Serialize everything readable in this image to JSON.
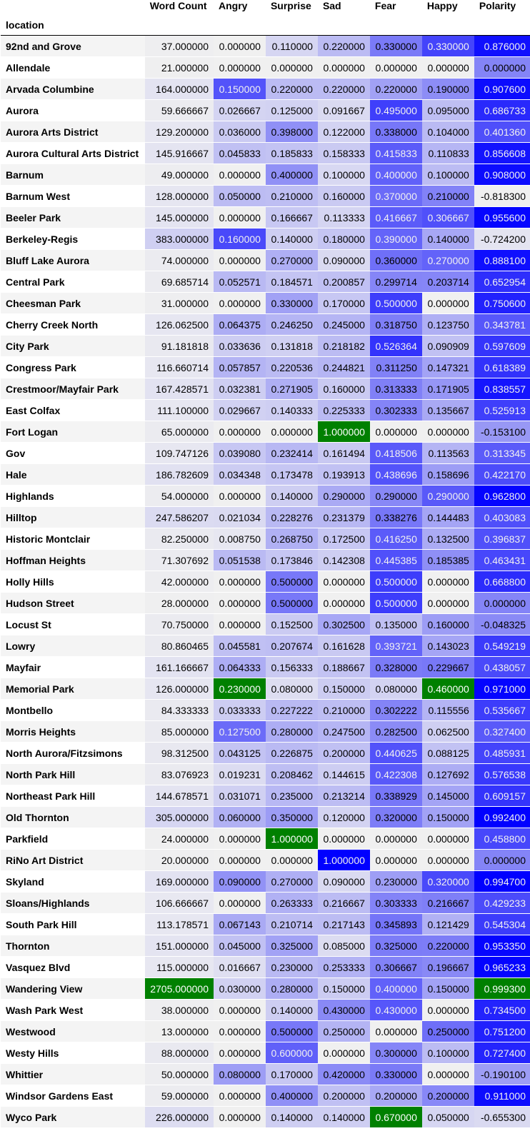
{
  "table": {
    "index_label": "location",
    "columns": [
      "Word Count",
      "Angry",
      "Surprise",
      "Sad",
      "Fear",
      "Happy",
      "Polarity"
    ],
    "highlight_color": "#008000",
    "rows": [
      {
        "location": "92nd and Grove",
        "values": [
          "37.000000",
          "0.000000",
          "0.110000",
          "0.220000",
          "0.330000",
          "0.330000",
          "0.876000"
        ]
      },
      {
        "location": "Allendale",
        "values": [
          "21.000000",
          "0.000000",
          "0.000000",
          "0.000000",
          "0.000000",
          "0.000000",
          "0.000000"
        ]
      },
      {
        "location": "Arvada Columbine",
        "values": [
          "164.000000",
          "0.150000",
          "0.220000",
          "0.220000",
          "0.220000",
          "0.190000",
          "0.907600"
        ]
      },
      {
        "location": "Aurora",
        "values": [
          "59.666667",
          "0.026667",
          "0.125000",
          "0.091667",
          "0.495000",
          "0.095000",
          "0.686733"
        ]
      },
      {
        "location": "Aurora Arts District",
        "values": [
          "129.200000",
          "0.036000",
          "0.398000",
          "0.122000",
          "0.338000",
          "0.104000",
          "0.401360"
        ]
      },
      {
        "location": "Aurora Cultural Arts District",
        "values": [
          "145.916667",
          "0.045833",
          "0.185833",
          "0.158333",
          "0.415833",
          "0.110833",
          "0.856608"
        ]
      },
      {
        "location": "Barnum",
        "values": [
          "49.000000",
          "0.000000",
          "0.400000",
          "0.100000",
          "0.400000",
          "0.100000",
          "0.908000"
        ]
      },
      {
        "location": "Barnum West",
        "values": [
          "128.000000",
          "0.050000",
          "0.210000",
          "0.160000",
          "0.370000",
          "0.210000",
          "-0.818300"
        ]
      },
      {
        "location": "Beeler Park",
        "values": [
          "145.000000",
          "0.000000",
          "0.166667",
          "0.113333",
          "0.416667",
          "0.306667",
          "0.955600"
        ]
      },
      {
        "location": "Berkeley-Regis",
        "values": [
          "383.000000",
          "0.160000",
          "0.140000",
          "0.180000",
          "0.390000",
          "0.140000",
          "-0.724200"
        ]
      },
      {
        "location": "Bluff Lake Aurora",
        "values": [
          "74.000000",
          "0.000000",
          "0.270000",
          "0.090000",
          "0.360000",
          "0.270000",
          "0.888100"
        ]
      },
      {
        "location": "Central Park",
        "values": [
          "69.685714",
          "0.052571",
          "0.184571",
          "0.200857",
          "0.299714",
          "0.203714",
          "0.652954"
        ]
      },
      {
        "location": "Cheesman Park",
        "values": [
          "31.000000",
          "0.000000",
          "0.330000",
          "0.170000",
          "0.500000",
          "0.000000",
          "0.750600"
        ]
      },
      {
        "location": "Cherry Creek North",
        "values": [
          "126.062500",
          "0.064375",
          "0.246250",
          "0.245000",
          "0.318750",
          "0.123750",
          "0.343781"
        ]
      },
      {
        "location": "City Park",
        "values": [
          "91.181818",
          "0.033636",
          "0.131818",
          "0.218182",
          "0.526364",
          "0.090909",
          "0.597609"
        ]
      },
      {
        "location": "Congress Park",
        "values": [
          "116.660714",
          "0.057857",
          "0.220536",
          "0.244821",
          "0.311250",
          "0.147321",
          "0.618389"
        ]
      },
      {
        "location": "Crestmoor/Mayfair Park",
        "values": [
          "167.428571",
          "0.032381",
          "0.271905",
          "0.160000",
          "0.313333",
          "0.171905",
          "0.838557"
        ]
      },
      {
        "location": "East Colfax",
        "values": [
          "111.100000",
          "0.029667",
          "0.140333",
          "0.225333",
          "0.302333",
          "0.135667",
          "0.525913"
        ]
      },
      {
        "location": "Fort Logan",
        "values": [
          "65.000000",
          "0.000000",
          "0.000000",
          "1.000000",
          "0.000000",
          "0.000000",
          "-0.153100"
        ]
      },
      {
        "location": "Gov",
        "values": [
          "109.747126",
          "0.039080",
          "0.232414",
          "0.161494",
          "0.418506",
          "0.113563",
          "0.313345"
        ]
      },
      {
        "location": "Hale",
        "values": [
          "186.782609",
          "0.034348",
          "0.173478",
          "0.193913",
          "0.438696",
          "0.158696",
          "0.422170"
        ]
      },
      {
        "location": "Highlands",
        "values": [
          "54.000000",
          "0.000000",
          "0.140000",
          "0.290000",
          "0.290000",
          "0.290000",
          "0.962800"
        ]
      },
      {
        "location": "Hilltop",
        "values": [
          "247.586207",
          "0.021034",
          "0.228276",
          "0.231379",
          "0.338276",
          "0.144483",
          "0.403083"
        ]
      },
      {
        "location": "Historic Montclair",
        "values": [
          "82.250000",
          "0.008750",
          "0.268750",
          "0.172500",
          "0.416250",
          "0.132500",
          "0.396837"
        ]
      },
      {
        "location": "Hoffman Heights",
        "values": [
          "71.307692",
          "0.051538",
          "0.173846",
          "0.142308",
          "0.445385",
          "0.185385",
          "0.463431"
        ]
      },
      {
        "location": "Holly Hills",
        "values": [
          "42.000000",
          "0.000000",
          "0.500000",
          "0.000000",
          "0.500000",
          "0.000000",
          "0.668800"
        ]
      },
      {
        "location": "Hudson Street",
        "values": [
          "28.000000",
          "0.000000",
          "0.500000",
          "0.000000",
          "0.500000",
          "0.000000",
          "0.000000"
        ]
      },
      {
        "location": "Locust St",
        "values": [
          "70.750000",
          "0.000000",
          "0.152500",
          "0.302500",
          "0.135000",
          "0.160000",
          "-0.048325"
        ]
      },
      {
        "location": "Lowry",
        "values": [
          "80.860465",
          "0.045581",
          "0.207674",
          "0.161628",
          "0.393721",
          "0.143023",
          "0.549219"
        ]
      },
      {
        "location": "Mayfair",
        "values": [
          "161.166667",
          "0.064333",
          "0.156333",
          "0.188667",
          "0.328000",
          "0.229667",
          "0.438057"
        ]
      },
      {
        "location": "Memorial Park",
        "values": [
          "126.000000",
          "0.230000",
          "0.080000",
          "0.150000",
          "0.080000",
          "0.460000",
          "0.971000"
        ]
      },
      {
        "location": "Montbello",
        "values": [
          "84.333333",
          "0.033333",
          "0.227222",
          "0.210000",
          "0.302222",
          "0.115556",
          "0.535667"
        ]
      },
      {
        "location": "Morris Heights",
        "values": [
          "85.000000",
          "0.127500",
          "0.280000",
          "0.247500",
          "0.282500",
          "0.062500",
          "0.327400"
        ]
      },
      {
        "location": "North Aurora/Fitzsimons",
        "values": [
          "98.312500",
          "0.043125",
          "0.226875",
          "0.200000",
          "0.440625",
          "0.088125",
          "0.485931"
        ]
      },
      {
        "location": "North Park Hill",
        "values": [
          "83.076923",
          "0.019231",
          "0.208462",
          "0.144615",
          "0.422308",
          "0.127692",
          "0.576538"
        ]
      },
      {
        "location": "Northeast Park Hill",
        "values": [
          "144.678571",
          "0.031071",
          "0.235000",
          "0.213214",
          "0.338929",
          "0.145000",
          "0.609157"
        ]
      },
      {
        "location": "Old Thornton",
        "values": [
          "305.000000",
          "0.060000",
          "0.350000",
          "0.120000",
          "0.320000",
          "0.150000",
          "0.992400"
        ]
      },
      {
        "location": "Parkfield",
        "values": [
          "24.000000",
          "0.000000",
          "1.000000",
          "0.000000",
          "0.000000",
          "0.000000",
          "0.458800"
        ]
      },
      {
        "location": "RiNo Art District",
        "values": [
          "20.000000",
          "0.000000",
          "0.000000",
          "1.000000",
          "0.000000",
          "0.000000",
          "0.000000"
        ]
      },
      {
        "location": "Skyland",
        "values": [
          "169.000000",
          "0.090000",
          "0.270000",
          "0.090000",
          "0.230000",
          "0.320000",
          "0.994700"
        ]
      },
      {
        "location": "Sloans/Highlands",
        "values": [
          "106.666667",
          "0.000000",
          "0.263333",
          "0.216667",
          "0.303333",
          "0.216667",
          "0.429233"
        ]
      },
      {
        "location": "South Park Hill",
        "values": [
          "113.178571",
          "0.067143",
          "0.210714",
          "0.217143",
          "0.345893",
          "0.121429",
          "0.545304"
        ]
      },
      {
        "location": "Thornton",
        "values": [
          "151.000000",
          "0.045000",
          "0.325000",
          "0.085000",
          "0.325000",
          "0.220000",
          "0.953350"
        ]
      },
      {
        "location": "Vasquez Blvd",
        "values": [
          "115.000000",
          "0.016667",
          "0.230000",
          "0.253333",
          "0.306667",
          "0.196667",
          "0.965233"
        ]
      },
      {
        "location": "Wandering View",
        "values": [
          "2705.000000",
          "0.030000",
          "0.280000",
          "0.150000",
          "0.400000",
          "0.150000",
          "0.999300"
        ]
      },
      {
        "location": "Wash Park West",
        "values": [
          "38.000000",
          "0.000000",
          "0.140000",
          "0.430000",
          "0.430000",
          "0.000000",
          "0.734500"
        ]
      },
      {
        "location": "Westwood",
        "values": [
          "13.000000",
          "0.000000",
          "0.500000",
          "0.250000",
          "0.000000",
          "0.250000",
          "0.751200"
        ]
      },
      {
        "location": "Westy Hills",
        "values": [
          "88.000000",
          "0.000000",
          "0.600000",
          "0.000000",
          "0.300000",
          "0.100000",
          "0.727400"
        ]
      },
      {
        "location": "Whittier",
        "values": [
          "50.000000",
          "0.080000",
          "0.170000",
          "0.420000",
          "0.330000",
          "0.000000",
          "-0.190100"
        ]
      },
      {
        "location": "Windsor Gardens East",
        "values": [
          "59.000000",
          "0.000000",
          "0.400000",
          "0.200000",
          "0.200000",
          "0.200000",
          "0.911000"
        ]
      },
      {
        "location": "Wyco Park",
        "values": [
          "226.000000",
          "0.000000",
          "0.140000",
          "0.140000",
          "0.670000",
          "0.050000",
          "-0.655300"
        ]
      }
    ]
  }
}
